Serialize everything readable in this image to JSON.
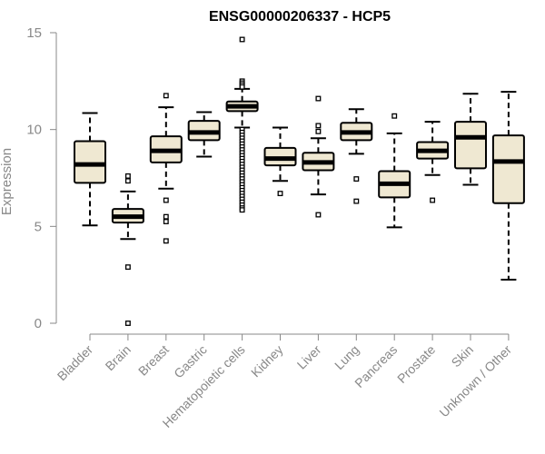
{
  "chart_data": {
    "type": "boxplot",
    "title": "ENSG00000206337 - HCP5",
    "xlabel": "",
    "ylabel": "Expression",
    "ylim": [
      0,
      15
    ],
    "yticks": [
      0,
      5,
      10,
      15
    ],
    "grid": false,
    "box_fill": "#efe8d2",
    "box_stroke": "#000000",
    "axis_color": "#888888",
    "categories": [
      "Bladder",
      "Brain",
      "Breast",
      "Gastric",
      "Hematopoietic cells",
      "Kidney",
      "Liver",
      "Lung",
      "Pancreas",
      "Prostate",
      "Skin",
      "Unknown / Other"
    ],
    "boxes": [
      {
        "category": "Bladder",
        "whisker_low": 5.05,
        "q1": 7.25,
        "median": 8.2,
        "q3": 9.4,
        "whisker_high": 10.85,
        "outliers": []
      },
      {
        "category": "Brain",
        "whisker_low": 4.35,
        "q1": 5.2,
        "median": 5.5,
        "q3": 5.9,
        "whisker_high": 6.8,
        "outliers": [
          7.6,
          7.35,
          2.9,
          0.0
        ]
      },
      {
        "category": "Breast",
        "whisker_low": 6.95,
        "q1": 8.3,
        "median": 8.9,
        "q3": 9.65,
        "whisker_high": 11.15,
        "outliers": [
          11.75,
          6.35,
          5.5,
          5.25,
          4.25
        ]
      },
      {
        "category": "Gastric",
        "whisker_low": 8.6,
        "q1": 9.45,
        "median": 9.85,
        "q3": 10.45,
        "whisker_high": 10.9,
        "outliers": []
      },
      {
        "category": "Hematopoietic cells",
        "whisker_low": 10.1,
        "q1": 10.95,
        "median": 11.2,
        "q3": 11.45,
        "whisker_high": 12.1,
        "outliers": [
          14.65,
          12.5,
          12.4,
          12.3,
          12.2,
          10.0,
          9.85,
          9.7,
          9.55,
          9.4,
          9.25,
          9.1,
          8.95,
          8.8,
          8.65,
          8.5,
          8.35,
          8.2,
          8.05,
          7.9,
          7.75,
          7.6,
          7.45,
          7.3,
          7.15,
          7.0,
          6.85,
          6.7,
          6.55,
          6.4,
          6.25,
          6.1,
          5.95,
          5.85
        ]
      },
      {
        "category": "Kidney",
        "whisker_low": 7.35,
        "q1": 8.15,
        "median": 8.5,
        "q3": 9.05,
        "whisker_high": 10.1,
        "outliers": [
          6.7
        ]
      },
      {
        "category": "Liver",
        "whisker_low": 6.65,
        "q1": 7.9,
        "median": 8.3,
        "q3": 8.8,
        "whisker_high": 9.55,
        "outliers": [
          11.6,
          10.2,
          9.9,
          5.6
        ]
      },
      {
        "category": "Lung",
        "whisker_low": 8.75,
        "q1": 9.45,
        "median": 9.85,
        "q3": 10.35,
        "whisker_high": 11.05,
        "outliers": [
          7.45,
          6.3
        ]
      },
      {
        "category": "Pancreas",
        "whisker_low": 4.95,
        "q1": 6.5,
        "median": 7.2,
        "q3": 7.85,
        "whisker_high": 9.8,
        "outliers": [
          10.7
        ]
      },
      {
        "category": "Prostate",
        "whisker_low": 7.65,
        "q1": 8.5,
        "median": 8.9,
        "q3": 9.35,
        "whisker_high": 10.4,
        "outliers": [
          6.35
        ]
      },
      {
        "category": "Skin",
        "whisker_low": 7.15,
        "q1": 8.0,
        "median": 9.6,
        "q3": 10.4,
        "whisker_high": 11.85,
        "outliers": []
      },
      {
        "category": "Unknown / Other",
        "whisker_low": 2.25,
        "q1": 6.2,
        "median": 8.35,
        "q3": 9.7,
        "whisker_high": 11.95,
        "outliers": []
      }
    ]
  }
}
